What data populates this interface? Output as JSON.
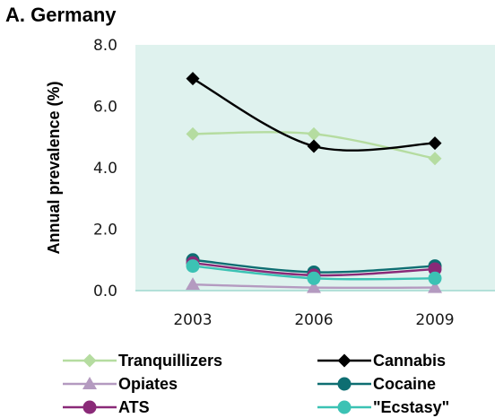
{
  "chart_data": {
    "type": "line",
    "title": "A. Germany",
    "xlabel": "",
    "ylabel": "Annual prevalence (%)",
    "categories": [
      "2003",
      "2006",
      "2009"
    ],
    "ylim": [
      0,
      8
    ],
    "yticks": [
      "0.0",
      "2.0",
      "4.0",
      "6.0",
      "8.0"
    ],
    "ytick_values": [
      0,
      2,
      4,
      6,
      8
    ],
    "grid": false,
    "legend_position": "bottom",
    "plot_background": "#dff2ee",
    "series": [
      {
        "name": "Tranquillizers",
        "values": [
          5.1,
          5.1,
          4.3
        ],
        "color": "#b5dca0",
        "marker": "diamond"
      },
      {
        "name": "Cannabis",
        "values": [
          6.9,
          4.7,
          4.8
        ],
        "color": "#000000",
        "marker": "diamond"
      },
      {
        "name": "Opiates",
        "values": [
          0.2,
          0.1,
          0.1
        ],
        "color": "#b49ac0",
        "marker": "triangle"
      },
      {
        "name": "Cocaine",
        "values": [
          1.0,
          0.6,
          0.8
        ],
        "color": "#0e6e72",
        "marker": "circle"
      },
      {
        "name": "ATS",
        "values": [
          0.9,
          0.5,
          0.7
        ],
        "color": "#8a2a78",
        "marker": "circle"
      },
      {
        "name": "\"Ecstasy\"",
        "values": [
          0.8,
          0.4,
          0.4
        ],
        "color": "#3cc2b4",
        "marker": "circle"
      }
    ]
  }
}
